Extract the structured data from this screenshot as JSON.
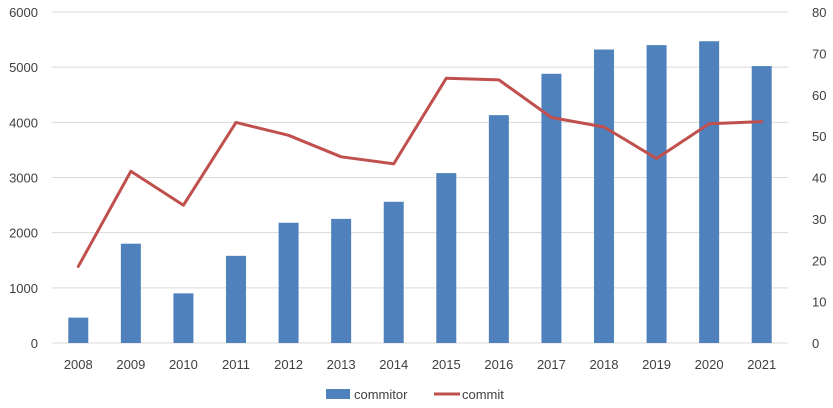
{
  "chart_data": {
    "type": "bar",
    "title": "",
    "xlabel": "",
    "ylabel": "",
    "categories": [
      "2008",
      "2009",
      "2010",
      "2011",
      "2012",
      "2013",
      "2014",
      "2015",
      "2016",
      "2017",
      "2018",
      "2019",
      "2020",
      "2021"
    ],
    "series": [
      {
        "name": "commitor",
        "type": "bar",
        "axis": "left",
        "color": "#4f81bd",
        "values": [
          460,
          1800,
          900,
          1580,
          2180,
          2250,
          2560,
          3080,
          4130,
          4880,
          5320,
          5400,
          5470,
          5020
        ]
      },
      {
        "name": "commit",
        "type": "line",
        "axis": "right",
        "color": "#c0504d",
        "values": [
          18.5,
          41.5,
          33.3,
          53.3,
          50.2,
          45.0,
          43.3,
          64.0,
          63.6,
          54.5,
          52.2,
          44.6,
          53.0,
          53.5
        ]
      }
    ],
    "y_left": {
      "ylim": [
        0,
        6000
      ],
      "ticks": [
        0,
        1000,
        2000,
        3000,
        4000,
        5000,
        6000
      ]
    },
    "y_right": {
      "ylim": [
        0,
        80
      ],
      "ticks": [
        0,
        10,
        20,
        30,
        40,
        50,
        60,
        70,
        80
      ]
    },
    "grid": true,
    "legend": {
      "position": "bottom-center",
      "entries": [
        "commitor",
        "commit"
      ]
    },
    "gridline_color": "#d9d9d9",
    "axis_line_color": "#d9d9d9"
  }
}
